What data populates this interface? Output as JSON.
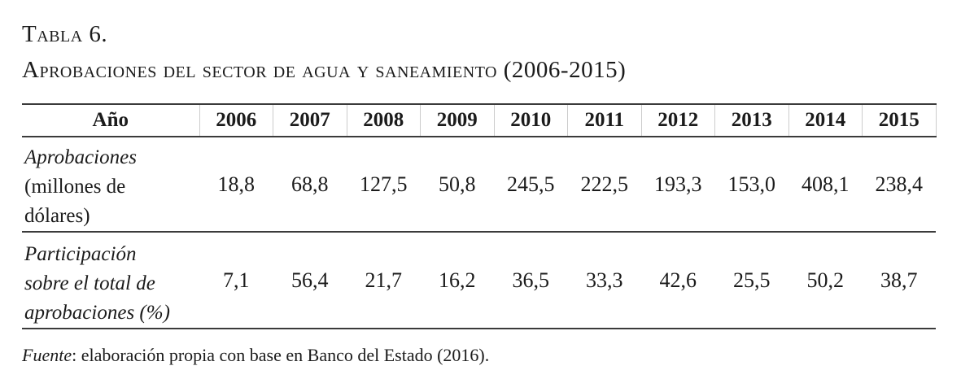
{
  "page": {
    "title_line1": "Tabla 6.",
    "title_line2": "Aprobaciones del sector de agua y saneamiento (2006-2015)"
  },
  "table": {
    "header": {
      "year_label": "Año",
      "years": [
        "2006",
        "2007",
        "2008",
        "2009",
        "2010",
        "2011",
        "2012",
        "2013",
        "2014",
        "2015"
      ]
    },
    "rows": [
      {
        "label_lines": [
          "Aprobaciones",
          "(millones de",
          "dólares)"
        ],
        "values": [
          "18,8",
          "68,8",
          "127,5",
          "50,8",
          "245,5",
          "222,5",
          "193,3",
          "153,0",
          "408,1",
          "238,4"
        ]
      },
      {
        "label_lines": [
          "Participación",
          "sobre el total de",
          "aprobaciones (%)"
        ],
        "values": [
          "7,1",
          "56,4",
          "21,7",
          "16,2",
          "36,5",
          "33,3",
          "42,6",
          "25,5",
          "50,2",
          "38,7"
        ]
      }
    ]
  },
  "footer": {
    "source_label": "Fuente",
    "source_rest": ": elaboración propia con base en Banco del Estado (2016)."
  },
  "colors": {
    "text": "#1b1b1b",
    "rule": "#3b3b3b",
    "column_divider": "#cccccc",
    "background": "#ffffff"
  },
  "chart_data": {
    "type": "table",
    "title": "Tabla 6. Aprobaciones del sector de agua y saneamiento (2006-2015)",
    "categories": [
      2006,
      2007,
      2008,
      2009,
      2010,
      2011,
      2012,
      2013,
      2014,
      2015
    ],
    "series": [
      {
        "name": "Aprobaciones (millones de dólares)",
        "values": [
          18.8,
          68.8,
          127.5,
          50.8,
          245.5,
          222.5,
          193.3,
          153.0,
          408.1,
          238.4
        ]
      },
      {
        "name": "Participación sobre el total de aprobaciones (%)",
        "values": [
          7.1,
          56.4,
          21.7,
          16.2,
          36.5,
          33.3,
          42.6,
          25.5,
          50.2,
          38.7
        ]
      }
    ],
    "source": "Fuente: elaboración propia con base en Banco del Estado (2016)."
  }
}
